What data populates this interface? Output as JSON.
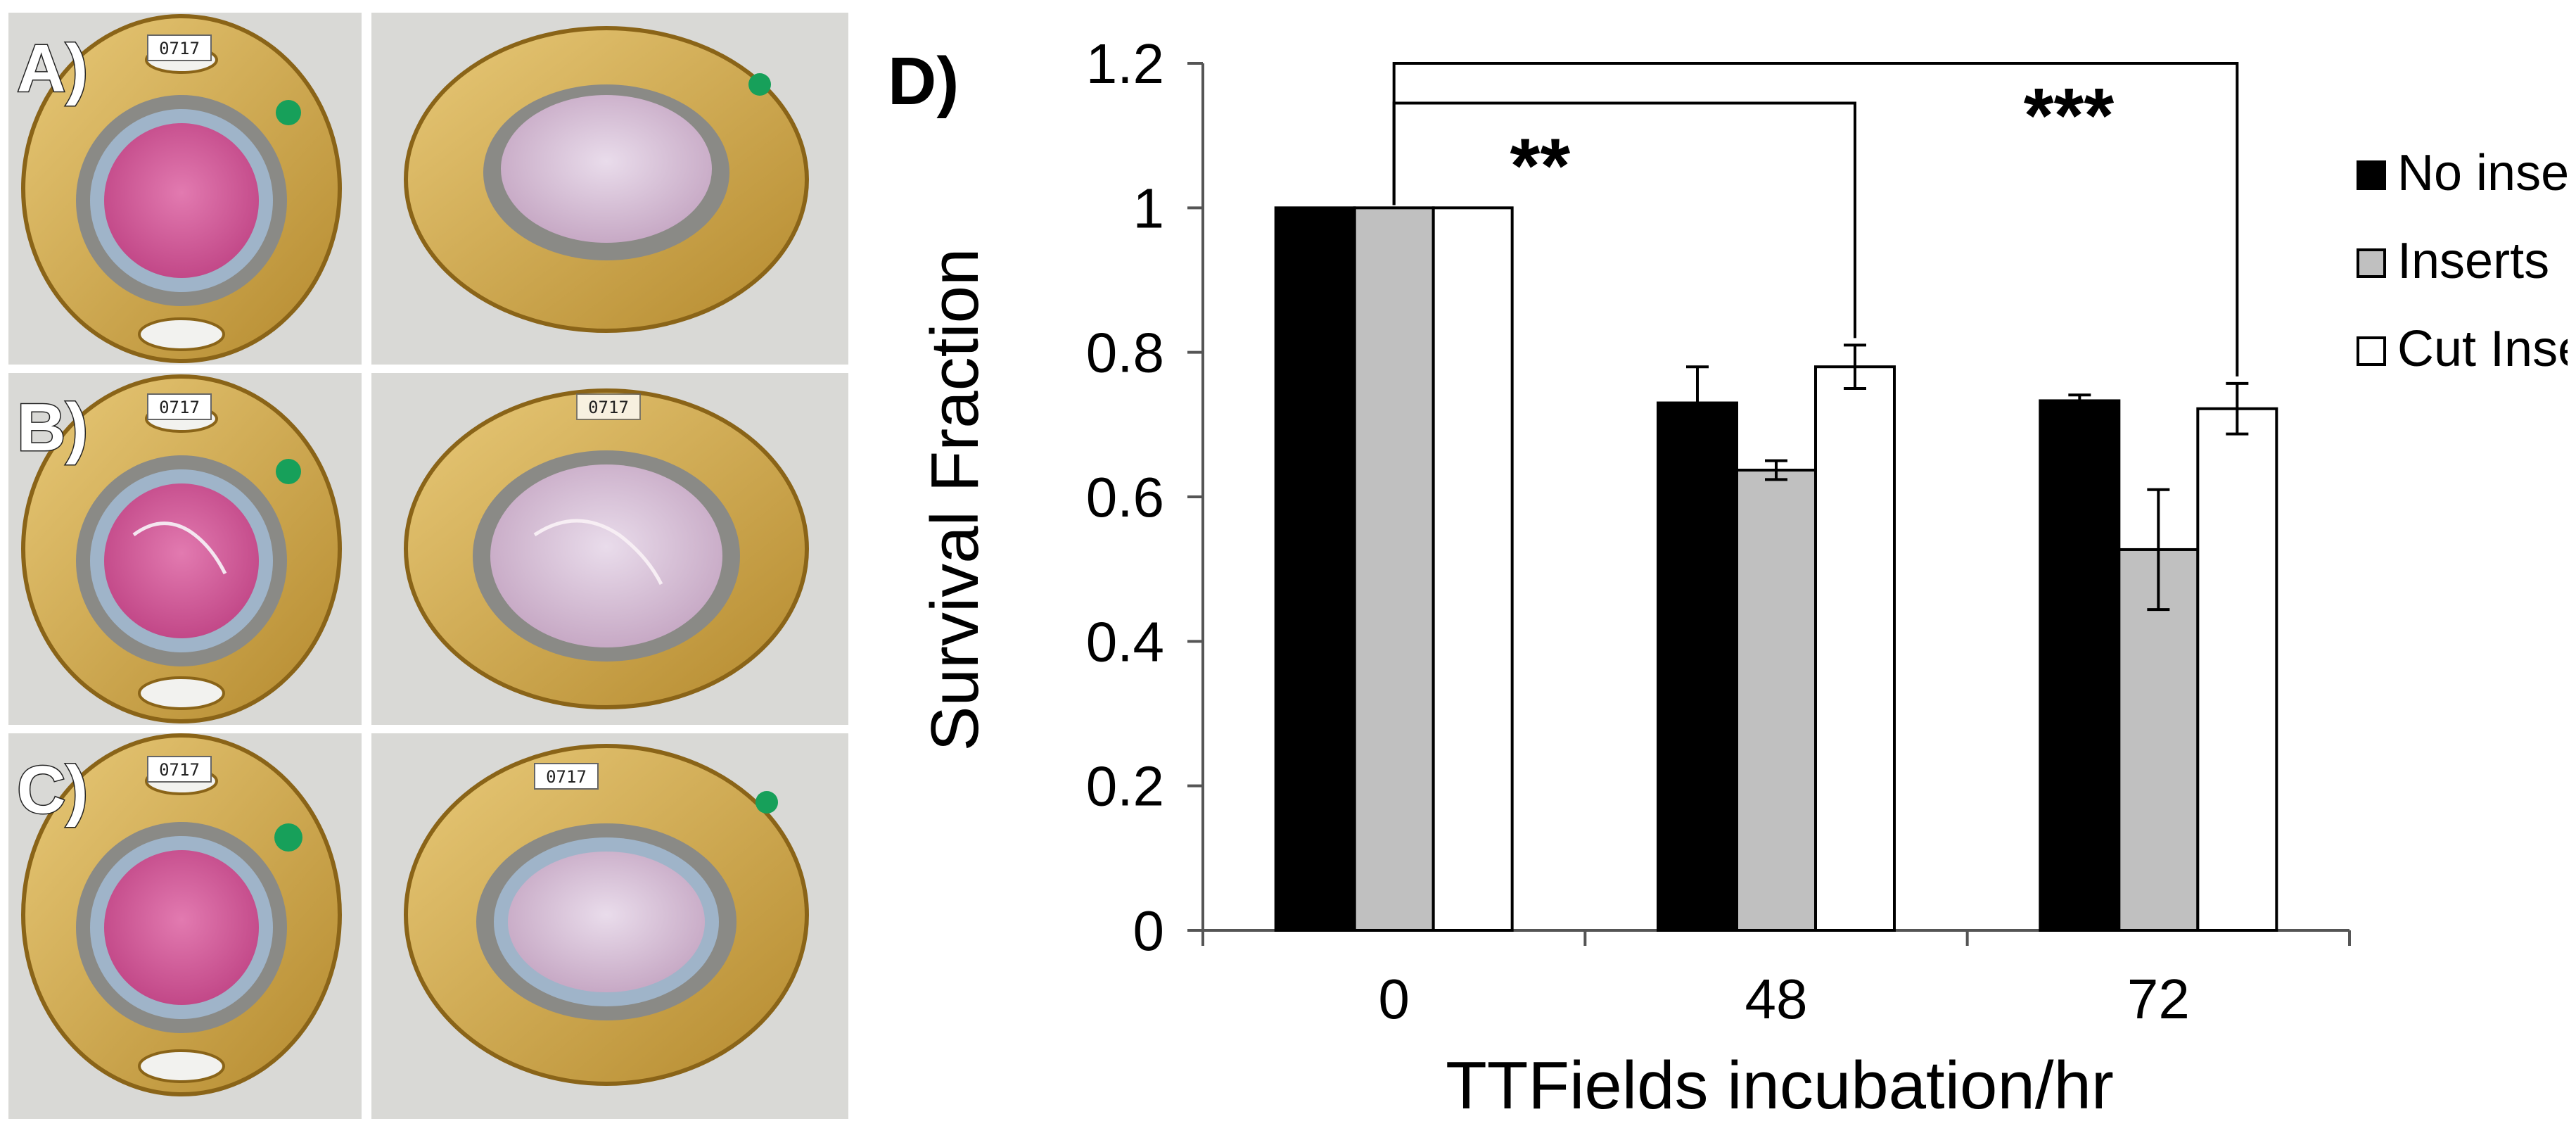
{
  "panels": {
    "photos": [
      {
        "letter": "A)",
        "tag_left": "0717",
        "tag_right": ""
      },
      {
        "letter": "B)",
        "tag_left": "0717",
        "tag_right": "0717"
      },
      {
        "letter": "C)",
        "tag_left": "0717",
        "tag_right": "0717"
      }
    ],
    "chart_letter": "D)"
  },
  "colors": {
    "no_inserts": "#000000",
    "inserts": "#c0c0c0",
    "cut_inserts": "#ffffff",
    "media": "#d45a9a",
    "holder": "#c9a24a"
  },
  "chart_data": {
    "type": "bar",
    "title": "",
    "xlabel": "TTFields incubation/hr",
    "ylabel": "Survival Fraction",
    "ylim": [
      0,
      1.2
    ],
    "yticks": [
      "0",
      "0.2",
      "0.4",
      "0.6",
      "0.8",
      "1",
      "1.2"
    ],
    "yticks_values": [
      0,
      0.2,
      0.4,
      0.6,
      0.8,
      1.0,
      1.2
    ],
    "categories": [
      "0",
      "48",
      "72"
    ],
    "series": [
      {
        "name": "No inserts",
        "values": [
          1.0,
          0.73,
          0.733
        ],
        "errors": [
          0,
          0.05,
          0.008
        ]
      },
      {
        "name": "Inserts",
        "values": [
          1.0,
          0.637,
          0.527
        ],
        "errors": [
          0,
          0.013,
          0.083
        ]
      },
      {
        "name": "Cut Inserts",
        "values": [
          1.0,
          0.78,
          0.722
        ],
        "errors": [
          0,
          0.03,
          0.035
        ]
      }
    ],
    "legend_position": "top-right",
    "significance": [
      {
        "label": "**",
        "from_category": "0",
        "to_category": "48",
        "to_series": "Cut Inserts"
      },
      {
        "label": "***",
        "from_category": "0",
        "to_category": "72",
        "to_series": "Cut Inserts"
      }
    ]
  }
}
